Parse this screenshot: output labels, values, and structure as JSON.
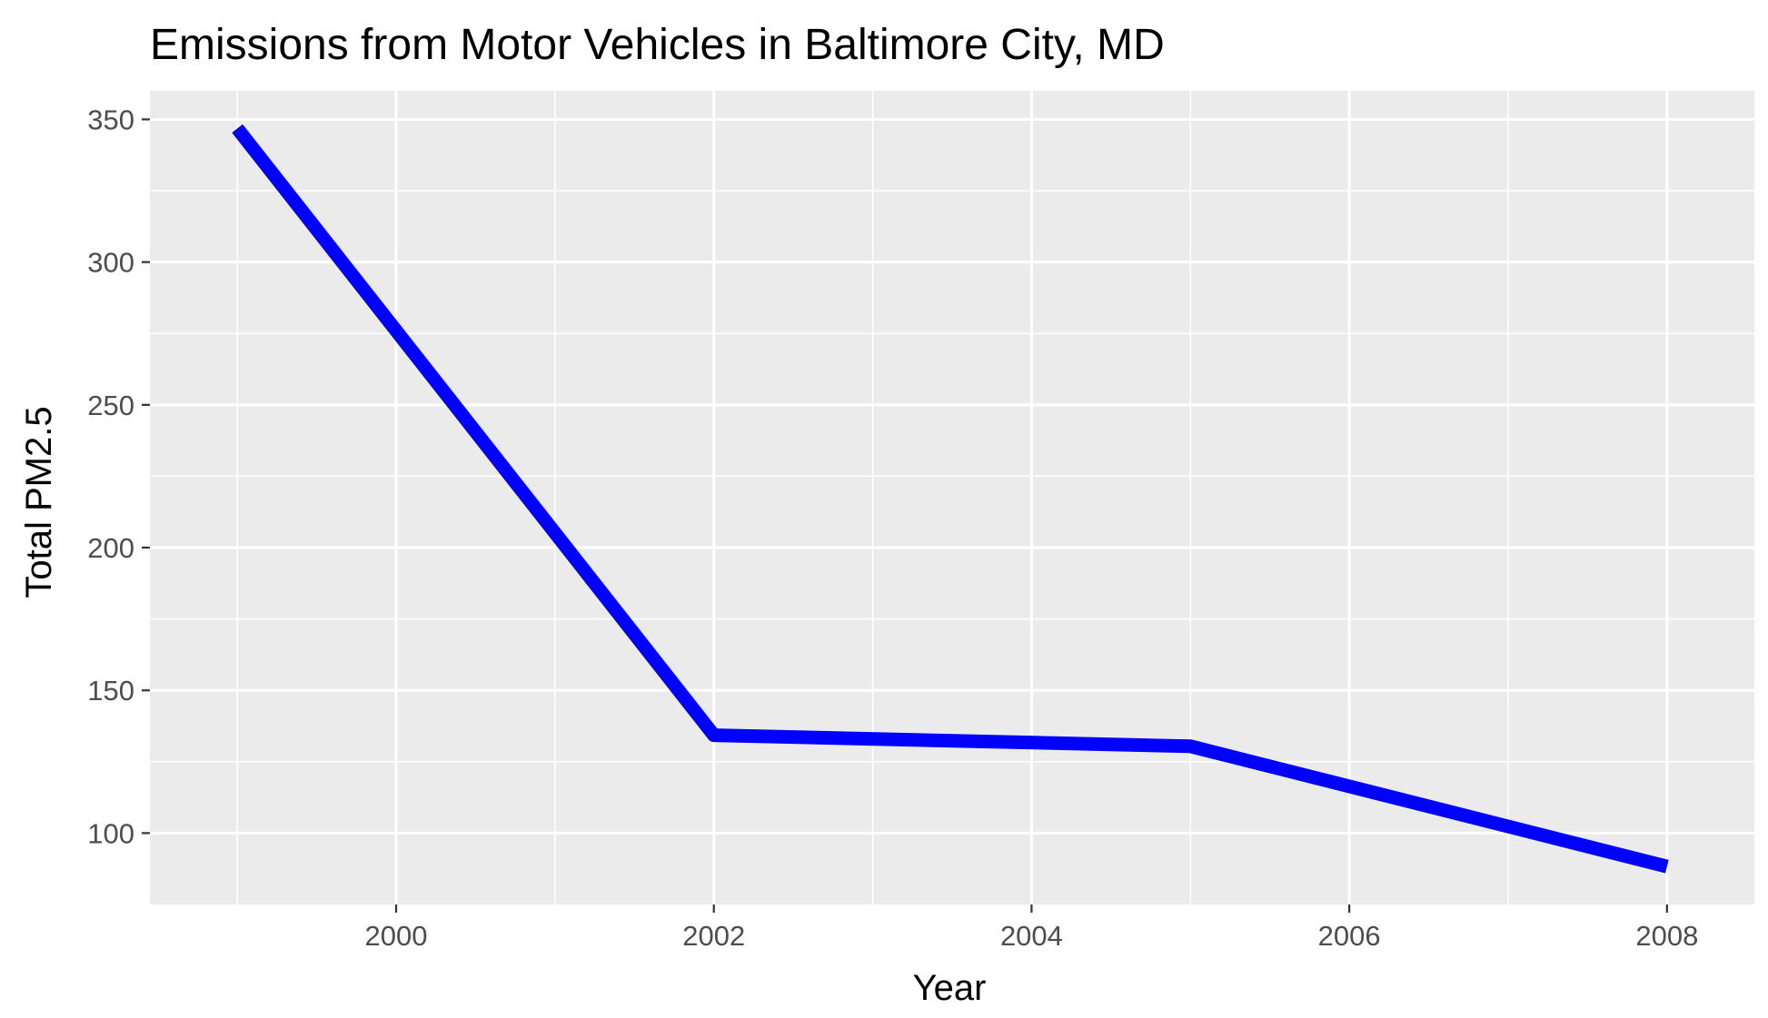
{
  "chart_data": {
    "type": "line",
    "title": "Emissions from Motor Vehicles in Baltimore City, MD",
    "xlabel": "Year",
    "ylabel": "Total PM2.5",
    "x": [
      1999,
      2002,
      2005,
      2008
    ],
    "series": [
      {
        "values": [
          346.8,
          134.3,
          130.4,
          88.3
        ]
      }
    ],
    "xlim": [
      1998.45,
      2008.55
    ],
    "ylim": [
      75,
      360
    ],
    "x_ticks": [
      2000,
      2002,
      2004,
      2006,
      2008
    ],
    "x_tick_labels": [
      "2000",
      "2002",
      "2004",
      "2006",
      "2008"
    ],
    "y_ticks": [
      100,
      150,
      200,
      250,
      300,
      350
    ],
    "y_tick_labels": [
      "100",
      "150",
      "200",
      "250",
      "300",
      "350"
    ],
    "grid": true,
    "legend": "none",
    "colors": {
      "line": "#0000ff",
      "panel_background": "#ebebeb",
      "grid_line": "#ffffff",
      "tick_text": "#4d4d4d",
      "tick_mark": "#333333"
    }
  }
}
